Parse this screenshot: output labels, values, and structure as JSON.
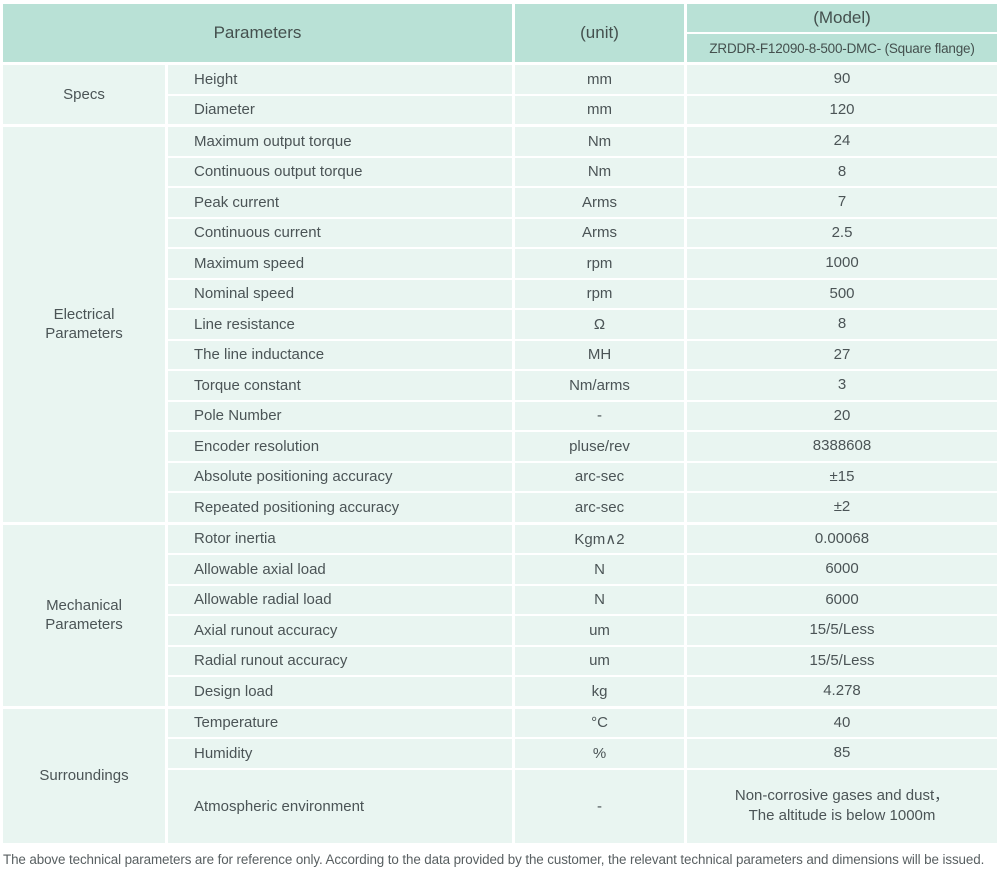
{
  "header": {
    "parameters_label": "Parameters",
    "unit_label": "(unit)",
    "model_label": "(Model)",
    "model_value": "ZRDDR-F12090-8-500-DMC- (Square flange)"
  },
  "sections": [
    {
      "label": "Specs",
      "rows": [
        {
          "name": "Height",
          "unit": "mm",
          "value": "90"
        },
        {
          "name": "Diameter",
          "unit": "mm",
          "value": "120"
        }
      ]
    },
    {
      "label": "Electrical Parameters",
      "rows": [
        {
          "name": "Maximum output torque",
          "unit": "Nm",
          "value": "24"
        },
        {
          "name": "Continuous output torque",
          "unit": "Nm",
          "value": "8"
        },
        {
          "name": "Peak current",
          "unit": "Arms",
          "value": "7"
        },
        {
          "name": "Continuous current",
          "unit": "Arms",
          "value": "2.5"
        },
        {
          "name": "Maximum speed",
          "unit": "rpm",
          "value": "1000"
        },
        {
          "name": "Nominal speed",
          "unit": "rpm",
          "value": "500"
        },
        {
          "name": "Line resistance",
          "unit": "Ω",
          "value": "8"
        },
        {
          "name": "The line inductance",
          "unit": "MH",
          "value": "27"
        },
        {
          "name": "Torque constant",
          "unit": "Nm/arms",
          "value": "3"
        },
        {
          "name": "Pole Number",
          "unit": "-",
          "value": "20"
        },
        {
          "name": "Encoder resolution",
          "unit": "pluse/rev",
          "value": "8388608"
        },
        {
          "name": "Absolute positioning accuracy",
          "unit": "arc-sec",
          "value": "±15"
        },
        {
          "name": "Repeated positioning accuracy",
          "unit": "arc-sec",
          "value": "±2"
        }
      ]
    },
    {
      "label": "Mechanical Parameters",
      "rows": [
        {
          "name": "Rotor inertia",
          "unit": "Kgm∧2",
          "value": "0.00068"
        },
        {
          "name": "Allowable axial load",
          "unit": "N",
          "value": "6000"
        },
        {
          "name": "Allowable radial load",
          "unit": "N",
          "value": "6000"
        },
        {
          "name": "Axial runout accuracy",
          "unit": "um",
          "value": "15/5/Less"
        },
        {
          "name": "Radial runout accuracy",
          "unit": "um",
          "value": "15/5/Less"
        },
        {
          "name": "Design load",
          "unit": "kg",
          "value": "4.278"
        }
      ]
    },
    {
      "label": "Surroundings",
      "rows": [
        {
          "name": "Temperature",
          "unit": "°C",
          "value": "40"
        },
        {
          "name": "Humidity",
          "unit": "%",
          "value": "85"
        },
        {
          "name": "Atmospheric environment",
          "unit": "-",
          "value": "Non-corrosive gases and dust，\nThe altitude is below 1000m"
        }
      ]
    }
  ],
  "footer": {
    "note": "The above technical parameters are for reference only. According to the data provided by the customer, the relevant technical parameters and dimensions will be issued."
  },
  "colors": {
    "header_bg": "#b9e1d6",
    "cell_bg": "#e9f5f1",
    "separator": "#ffffff",
    "text": "#4b5456",
    "footer_text": "#585f61"
  }
}
